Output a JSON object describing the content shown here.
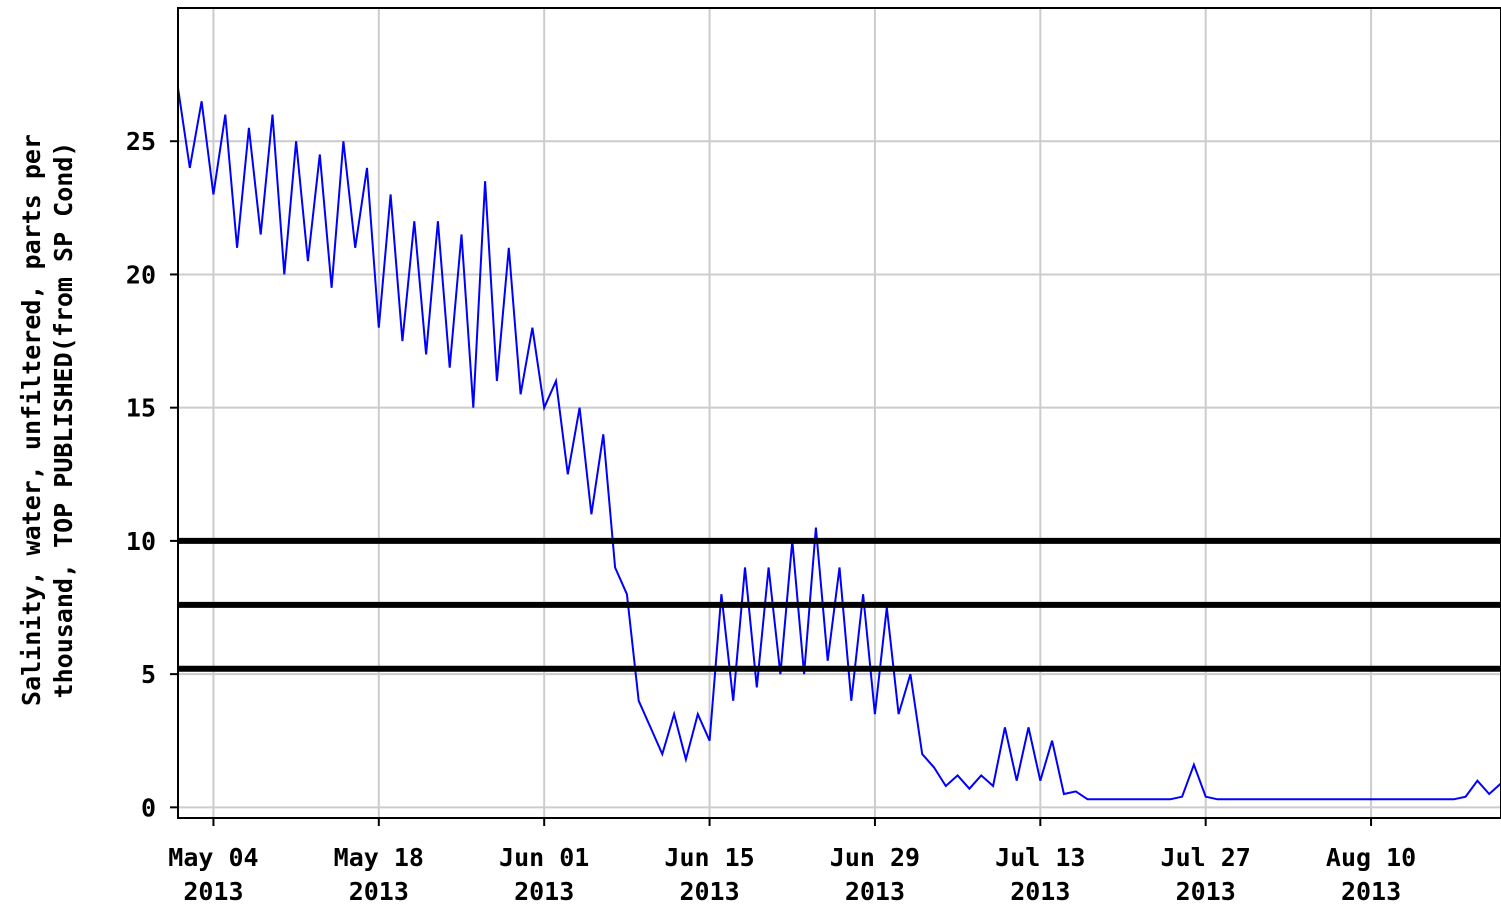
{
  "chart_data": {
    "type": "line",
    "ylabel": [
      "Salinity, water, unfiltered, parts per",
      "thousand, TOP PUBLISHED(from SP Cond)"
    ],
    "x": [
      "2013-05-01",
      "2013-05-02",
      "2013-05-03",
      "2013-05-04",
      "2013-05-05",
      "2013-05-06",
      "2013-05-07",
      "2013-05-08",
      "2013-05-09",
      "2013-05-10",
      "2013-05-11",
      "2013-05-12",
      "2013-05-13",
      "2013-05-14",
      "2013-05-15",
      "2013-05-16",
      "2013-05-17",
      "2013-05-18",
      "2013-05-19",
      "2013-05-20",
      "2013-05-21",
      "2013-05-22",
      "2013-05-23",
      "2013-05-24",
      "2013-05-25",
      "2013-05-26",
      "2013-05-27",
      "2013-05-28",
      "2013-05-29",
      "2013-05-30",
      "2013-05-31",
      "2013-06-01",
      "2013-06-02",
      "2013-06-03",
      "2013-06-04",
      "2013-06-05",
      "2013-06-06",
      "2013-06-07",
      "2013-06-08",
      "2013-06-09",
      "2013-06-10",
      "2013-06-11",
      "2013-06-12",
      "2013-06-13",
      "2013-06-14",
      "2013-06-15",
      "2013-06-16",
      "2013-06-17",
      "2013-06-18",
      "2013-06-19",
      "2013-06-20",
      "2013-06-21",
      "2013-06-22",
      "2013-06-23",
      "2013-06-24",
      "2013-06-25",
      "2013-06-26",
      "2013-06-27",
      "2013-06-28",
      "2013-06-29",
      "2013-06-30",
      "2013-07-01",
      "2013-07-02",
      "2013-07-03",
      "2013-07-04",
      "2013-07-05",
      "2013-07-06",
      "2013-07-07",
      "2013-07-08",
      "2013-07-09",
      "2013-07-10",
      "2013-07-11",
      "2013-07-12",
      "2013-07-13",
      "2013-07-14",
      "2013-07-15",
      "2013-07-16",
      "2013-07-17",
      "2013-07-18",
      "2013-07-19",
      "2013-07-20",
      "2013-07-21",
      "2013-07-22",
      "2013-07-23",
      "2013-07-24",
      "2013-07-25",
      "2013-07-26",
      "2013-07-27",
      "2013-07-28",
      "2013-07-29",
      "2013-07-30",
      "2013-07-31",
      "2013-08-01",
      "2013-08-02",
      "2013-08-03",
      "2013-08-04",
      "2013-08-05",
      "2013-08-06",
      "2013-08-07",
      "2013-08-08",
      "2013-08-09",
      "2013-08-10",
      "2013-08-11",
      "2013-08-12",
      "2013-08-13",
      "2013-08-14",
      "2013-08-15",
      "2013-08-16",
      "2013-08-17",
      "2013-08-18",
      "2013-08-19",
      "2013-08-20",
      "2013-08-21"
    ],
    "series": [
      {
        "color": "#0000ff",
        "values": [
          27,
          24,
          26.5,
          23,
          26,
          21,
          25.5,
          21.5,
          26,
          20,
          25,
          20.5,
          24.5,
          19.5,
          25,
          21,
          24,
          18,
          23,
          17.5,
          22,
          17,
          22,
          16.5,
          21.5,
          15,
          23.5,
          16,
          21,
          15.5,
          18,
          15,
          16,
          12.5,
          15,
          11,
          14,
          9,
          8,
          4,
          3,
          2,
          3.5,
          1.8,
          3.5,
          2.5,
          8,
          4,
          9,
          4.5,
          9,
          5,
          10,
          5,
          10.5,
          5.5,
          9,
          4,
          8,
          3.5,
          7.5,
          3.5,
          5,
          2,
          1.5,
          0.8,
          1.2,
          0.7,
          1.2,
          0.8,
          3,
          1,
          3,
          1,
          2.5,
          0.5,
          0.6,
          0.3,
          0.3,
          0.3,
          0.3,
          0.3,
          0.3,
          0.3,
          0.3,
          0.4,
          1.6,
          0.4,
          0.3,
          0.3,
          0.3,
          0.3,
          0.3,
          0.3,
          0.3,
          0.3,
          0.3,
          0.3,
          0.3,
          0.3,
          0.3,
          0.3,
          0.3,
          0.3,
          0.3,
          0.3,
          0.3,
          0.3,
          0.3,
          0.4,
          1.0,
          0.5,
          0.9
        ]
      }
    ],
    "xlim": [
      "2013-05-01",
      "2013-08-21"
    ],
    "xticks": [
      {
        "value": "2013-05-04",
        "label": "May 04\n2013"
      },
      {
        "value": "2013-05-18",
        "label": "May 18\n2013"
      },
      {
        "value": "2013-06-01",
        "label": "Jun 01\n2013"
      },
      {
        "value": "2013-06-15",
        "label": "Jun 15\n2013"
      },
      {
        "value": "2013-06-29",
        "label": "Jun 29\n2013"
      },
      {
        "value": "2013-07-13",
        "label": "Jul 13\n2013"
      },
      {
        "value": "2013-07-27",
        "label": "Jul 27\n2013"
      },
      {
        "value": "2013-08-10",
        "label": "Aug 10\n2013"
      }
    ],
    "ylim": [
      -0.4,
      30
    ],
    "yticks": [
      0,
      5,
      10,
      15,
      20,
      25
    ],
    "reference_lines": [
      10,
      7.6,
      5.2
    ],
    "grid": true
  }
}
